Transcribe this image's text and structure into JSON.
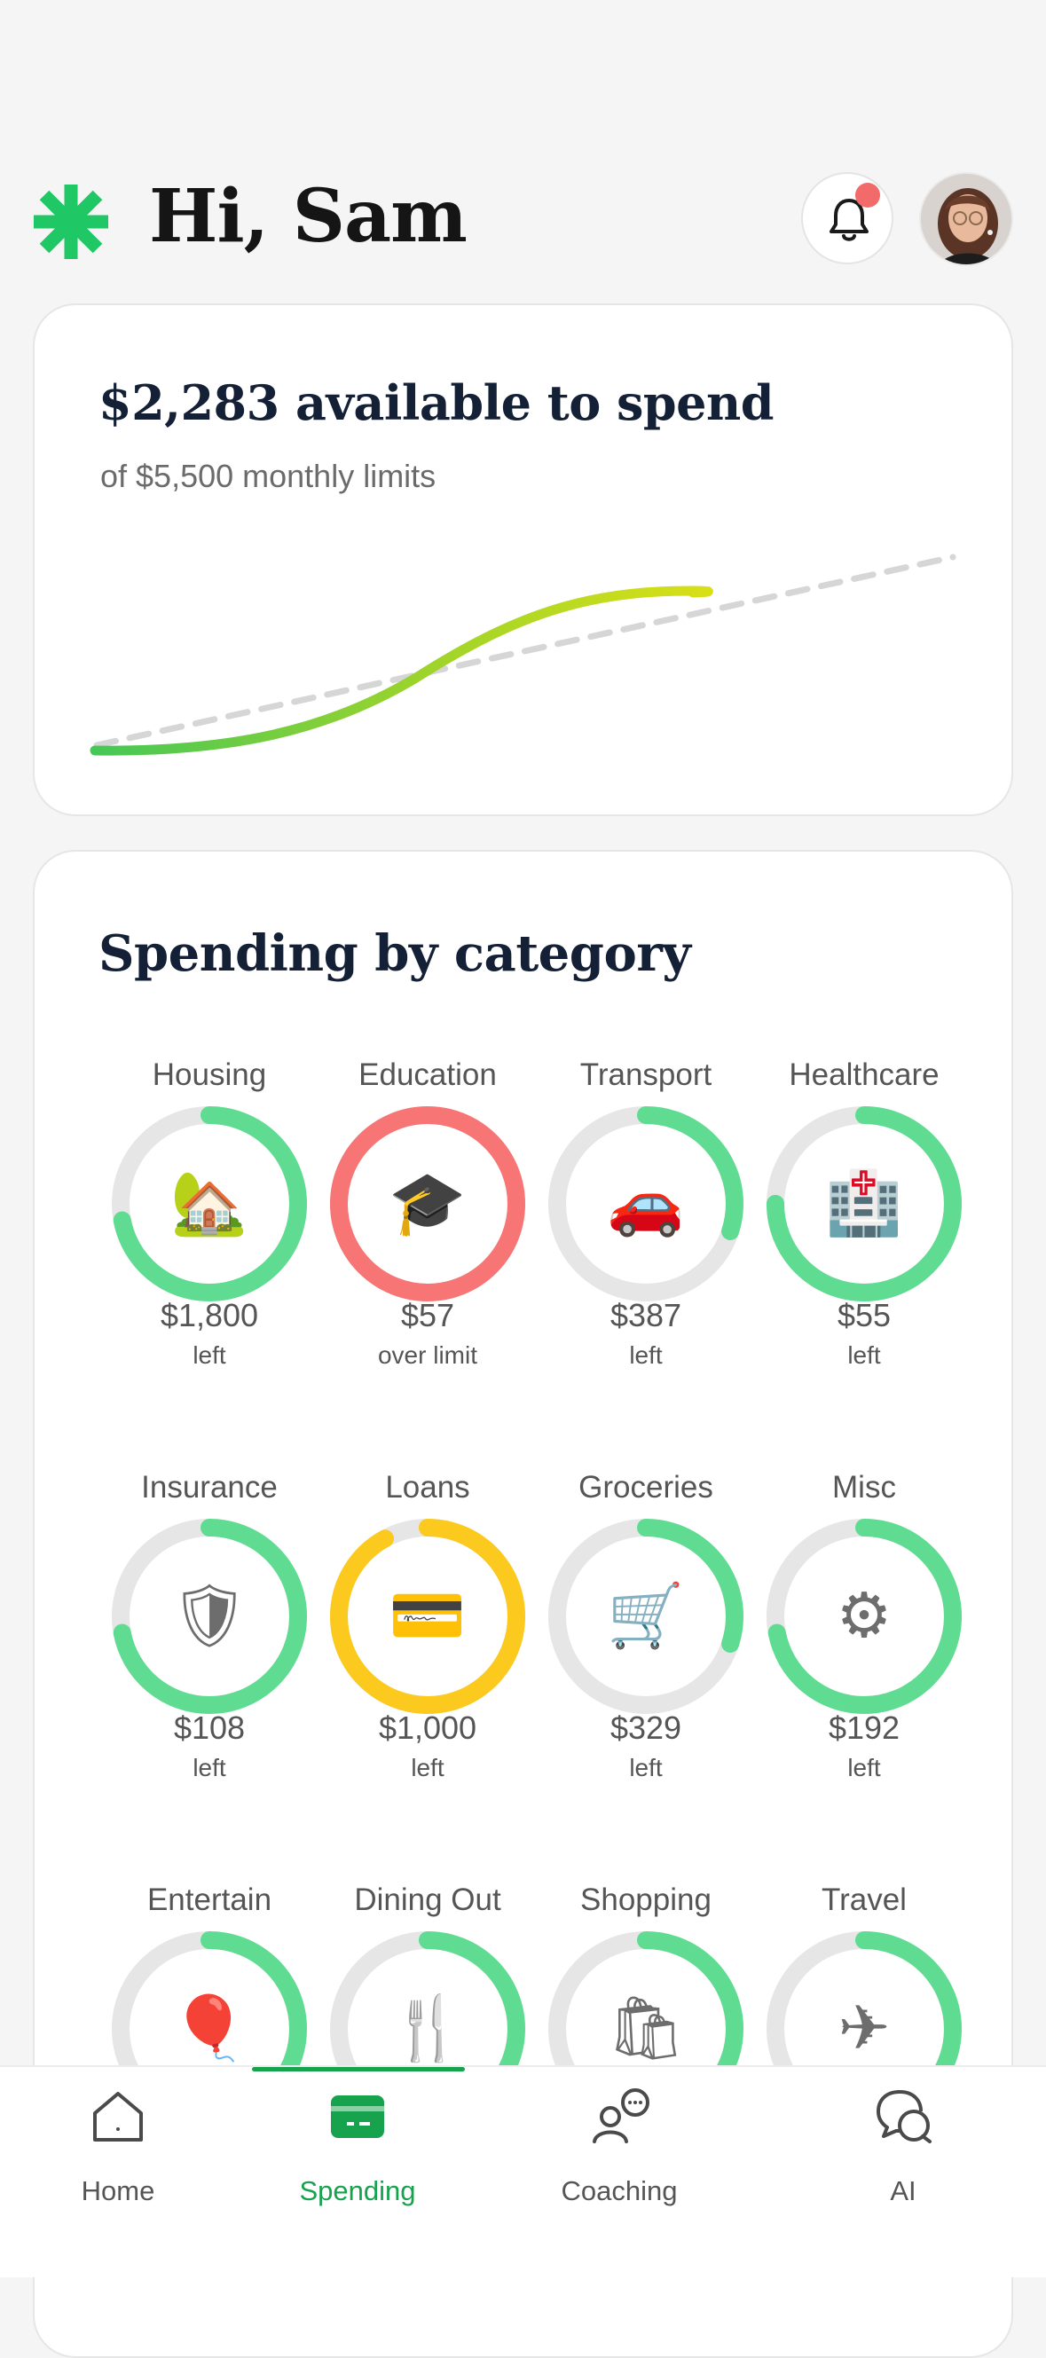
{
  "header": {
    "greeting": "Hi, Sam"
  },
  "summary": {
    "title": "$2,283 available to spend",
    "subtitle": "of $5,500 monthly limits"
  },
  "spending": {
    "title": "Spending by category",
    "categories": [
      {
        "name": "Housing",
        "amount": "$1,800",
        "status": "left",
        "progress": 0.72,
        "color": "#5fdc92",
        "icon": "house-icon",
        "emoji": "🏡"
      },
      {
        "name": "Education",
        "amount": "$57",
        "status": "over limit",
        "progress": 1.0,
        "color": "#f77575",
        "icon": "graduation-cap-icon",
        "emoji": "🎓"
      },
      {
        "name": "Transport",
        "amount": "$387",
        "status": "left",
        "progress": 0.3,
        "color": "#5fdc92",
        "icon": "car-icon",
        "emoji": "🚗"
      },
      {
        "name": "Healthcare",
        "amount": "$55",
        "status": "left",
        "progress": 0.75,
        "color": "#5fdc92",
        "icon": "hospital-icon",
        "emoji": "🏥"
      },
      {
        "name": "Insurance",
        "amount": "$108",
        "status": "left",
        "progress": 0.72,
        "color": "#5fdc92",
        "icon": "shield-icon",
        "emoji": "🛡"
      },
      {
        "name": "Loans",
        "amount": "$1,000",
        "status": "left",
        "progress": 0.92,
        "color": "#fcc91e",
        "icon": "credit-card-icon",
        "emoji": "💳"
      },
      {
        "name": "Groceries",
        "amount": "$329",
        "status": "left",
        "progress": 0.3,
        "color": "#5fdc92",
        "icon": "shopping-cart-icon",
        "emoji": "🛒"
      },
      {
        "name": "Misc",
        "amount": "$192",
        "status": "left",
        "progress": 0.72,
        "color": "#5fdc92",
        "icon": "gear-icon",
        "emoji": "⚙"
      },
      {
        "name": "Entertain",
        "amount": "",
        "status": "",
        "progress": 0.35,
        "color": "#5fdc92",
        "icon": "balloon-icon",
        "emoji": "🎈"
      },
      {
        "name": "Dining Out",
        "amount": "",
        "status": "",
        "progress": 0.35,
        "color": "#5fdc92",
        "icon": "fork-knife-icon",
        "emoji": "🍴"
      },
      {
        "name": "Shopping",
        "amount": "",
        "status": "",
        "progress": 0.35,
        "color": "#5fdc92",
        "icon": "shopping-bags-icon",
        "emoji": "🛍"
      },
      {
        "name": "Travel",
        "amount": "",
        "status": "",
        "progress": 0.35,
        "color": "#5fdc92",
        "icon": "airplane-icon",
        "emoji": "✈"
      }
    ]
  },
  "tabs": [
    {
      "label": "Home",
      "icon": "home-icon"
    },
    {
      "label": "Spending",
      "icon": "wallet-icon",
      "active": true
    },
    {
      "label": "Coaching",
      "icon": "coaching-icon"
    },
    {
      "label": "AI",
      "icon": "chat-icon"
    }
  ],
  "colors": {
    "brand": "#17a24d",
    "notification": "#f26a6a",
    "ring_track": "#e6e6e6"
  }
}
